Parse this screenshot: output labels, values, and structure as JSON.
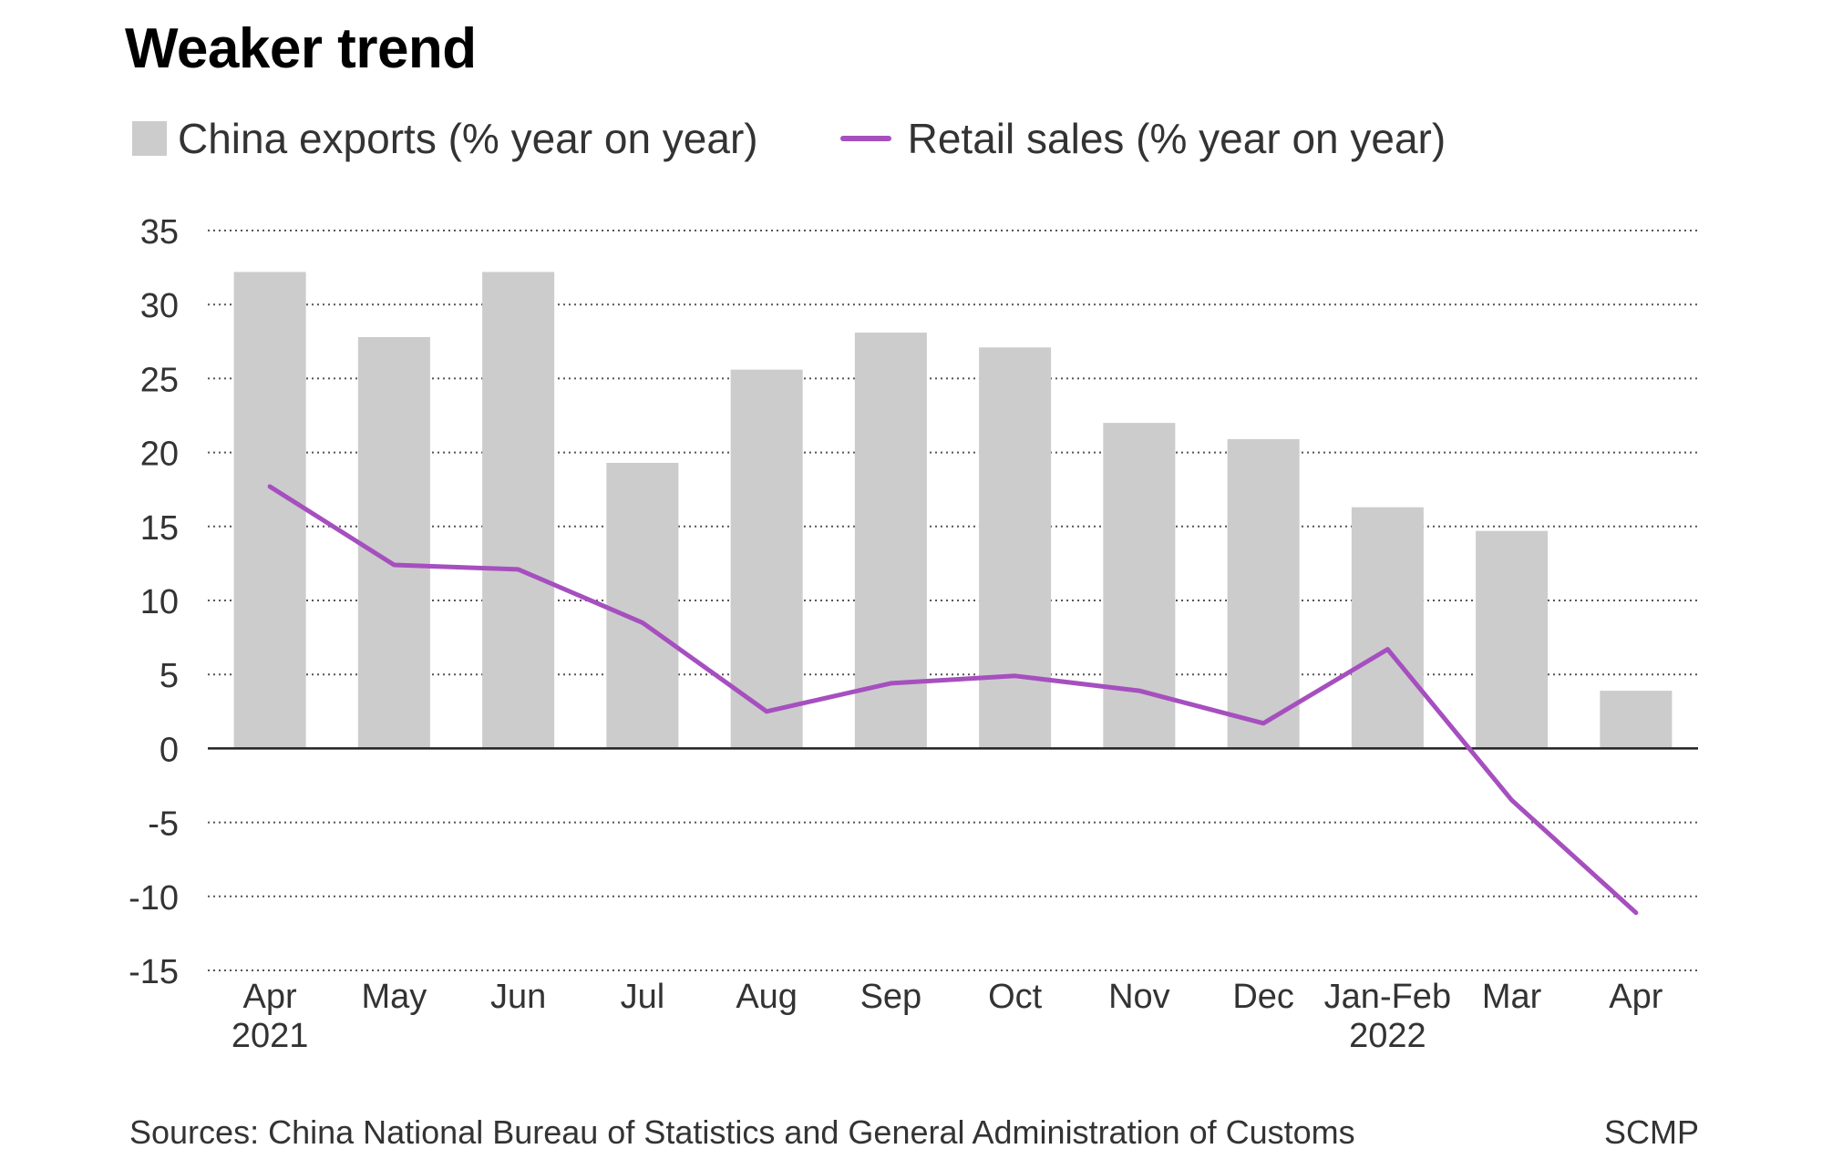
{
  "title": "Weaker trend",
  "legend": {
    "exports_label": "China exports (% year on year)",
    "retail_label": "Retail sales (% year on year)"
  },
  "footer": {
    "source": "Sources: China National Bureau of Statistics and General Administration of Customs",
    "brand": "SCMP"
  },
  "colors": {
    "bar": "#cccccc",
    "line": "#a64fbf",
    "grid": "#555555",
    "zero_line": "#222222",
    "text": "#333333"
  },
  "chart_data": {
    "type": "bar",
    "title": "Weaker trend",
    "categories": [
      "Apr",
      "May",
      "Jun",
      "Jul",
      "Aug",
      "Sep",
      "Oct",
      "Nov",
      "Dec",
      "Jan-Feb",
      "Mar",
      "Apr"
    ],
    "category_sublabels": [
      "2021",
      "",
      "",
      "",
      "",
      "",
      "",
      "",
      "",
      "2022",
      "",
      ""
    ],
    "series": [
      {
        "name": "China exports (% year on year)",
        "kind": "bar",
        "values": [
          32.2,
          27.8,
          32.2,
          19.3,
          25.6,
          28.1,
          27.1,
          22.0,
          20.9,
          16.3,
          14.7,
          3.9
        ]
      },
      {
        "name": "Retail sales (% year on year)",
        "kind": "line",
        "values": [
          17.7,
          12.4,
          12.1,
          8.5,
          2.5,
          4.4,
          4.9,
          3.9,
          1.7,
          6.7,
          -3.5,
          -11.1
        ]
      }
    ],
    "ylim": [
      -15,
      35
    ],
    "yticks": [
      35,
      30,
      25,
      20,
      15,
      10,
      5,
      0,
      -5,
      -10,
      -15
    ],
    "grid": "dotted horizontal",
    "legend_position": "top-left",
    "xlabel": "",
    "ylabel": ""
  }
}
